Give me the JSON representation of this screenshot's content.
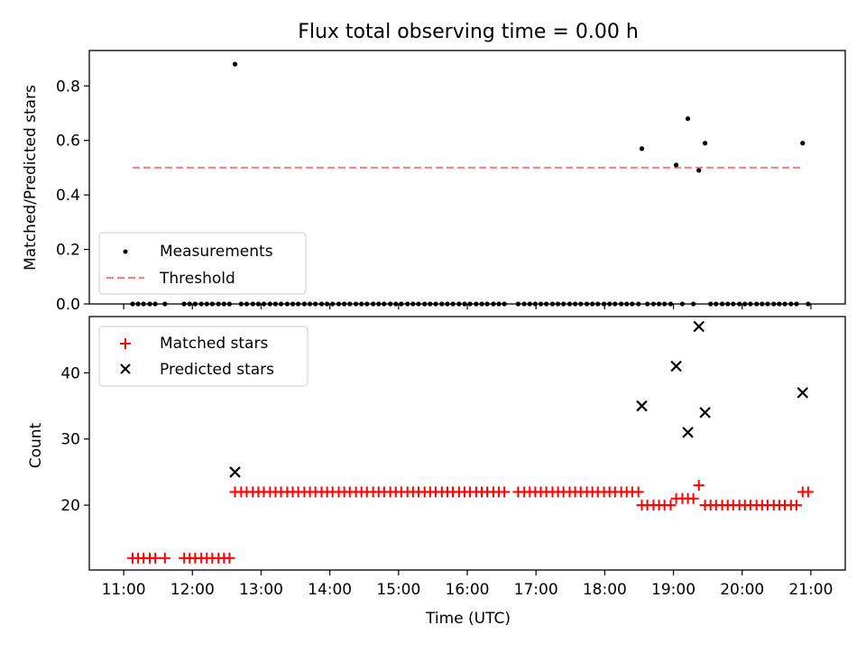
{
  "figure_title": "Flux total observing time = 0.00 h",
  "colors": {
    "threshold": "#ff7b7b",
    "matched": "#ff0000",
    "predicted": "#000000",
    "measurements": "#000000"
  },
  "chart_data": [
    {
      "type": "scatter",
      "title": "Flux total observing time = 0.00 h",
      "xlabel": "",
      "ylabel": "Matched/Predicted stars",
      "x_unit": "hours UTC",
      "xlim": [
        10.5,
        21.5
      ],
      "ylim": [
        0,
        0.93
      ],
      "yticks": [
        0.0,
        0.2,
        0.4,
        0.6,
        0.8
      ],
      "ytick_labels": [
        "0.0",
        "0.2",
        "0.4",
        "0.6",
        "0.8"
      ],
      "legend": {
        "placement": "lower-left",
        "entries": [
          "Measurements",
          "Threshold"
        ]
      },
      "series": [
        {
          "name": "Measurements",
          "marker": "dot",
          "points": [
            [
              11.13,
              0
            ],
            [
              11.21,
              0
            ],
            [
              11.29,
              0
            ],
            [
              11.38,
              0
            ],
            [
              11.46,
              0
            ],
            [
              11.6,
              0
            ],
            [
              11.88,
              0
            ],
            [
              11.96,
              0
            ],
            [
              12.04,
              0
            ],
            [
              12.13,
              0
            ],
            [
              12.21,
              0
            ],
            [
              12.29,
              0
            ],
            [
              12.38,
              0
            ],
            [
              12.46,
              0
            ],
            [
              12.54,
              0
            ],
            [
              12.62,
              0.88
            ],
            [
              12.71,
              0
            ],
            [
              12.79,
              0
            ],
            [
              12.88,
              0
            ],
            [
              12.96,
              0
            ],
            [
              13.04,
              0
            ],
            [
              13.13,
              0
            ],
            [
              13.21,
              0
            ],
            [
              13.29,
              0
            ],
            [
              13.38,
              0
            ],
            [
              13.46,
              0
            ],
            [
              13.54,
              0
            ],
            [
              13.63,
              0
            ],
            [
              13.71,
              0
            ],
            [
              13.79,
              0
            ],
            [
              13.88,
              0
            ],
            [
              13.96,
              0
            ],
            [
              14.04,
              0
            ],
            [
              14.13,
              0
            ],
            [
              14.21,
              0
            ],
            [
              14.29,
              0
            ],
            [
              14.38,
              0
            ],
            [
              14.46,
              0
            ],
            [
              14.54,
              0
            ],
            [
              14.63,
              0
            ],
            [
              14.71,
              0
            ],
            [
              14.79,
              0
            ],
            [
              14.88,
              0
            ],
            [
              14.96,
              0
            ],
            [
              15.04,
              0
            ],
            [
              15.13,
              0
            ],
            [
              15.21,
              0
            ],
            [
              15.29,
              0
            ],
            [
              15.38,
              0
            ],
            [
              15.46,
              0
            ],
            [
              15.54,
              0
            ],
            [
              15.63,
              0
            ],
            [
              15.71,
              0
            ],
            [
              15.79,
              0
            ],
            [
              15.88,
              0
            ],
            [
              15.96,
              0
            ],
            [
              16.04,
              0
            ],
            [
              16.13,
              0
            ],
            [
              16.21,
              0
            ],
            [
              16.29,
              0
            ],
            [
              16.38,
              0
            ],
            [
              16.46,
              0
            ],
            [
              16.54,
              0
            ],
            [
              16.74,
              0
            ],
            [
              16.83,
              0
            ],
            [
              16.91,
              0
            ],
            [
              16.99,
              0
            ],
            [
              17.07,
              0
            ],
            [
              17.15,
              0
            ],
            [
              17.24,
              0
            ],
            [
              17.32,
              0
            ],
            [
              17.4,
              0
            ],
            [
              17.49,
              0
            ],
            [
              17.57,
              0
            ],
            [
              17.65,
              0
            ],
            [
              17.74,
              0
            ],
            [
              17.82,
              0
            ],
            [
              17.9,
              0
            ],
            [
              17.99,
              0
            ],
            [
              18.07,
              0
            ],
            [
              18.15,
              0
            ],
            [
              18.24,
              0
            ],
            [
              18.32,
              0
            ],
            [
              18.4,
              0
            ],
            [
              18.49,
              0
            ],
            [
              18.54,
              0.57
            ],
            [
              18.62,
              0
            ],
            [
              18.71,
              0
            ],
            [
              18.79,
              0
            ],
            [
              18.87,
              0
            ],
            [
              18.96,
              0
            ],
            [
              19.04,
              0.51
            ],
            [
              19.13,
              0
            ],
            [
              19.21,
              0.68
            ],
            [
              19.29,
              0
            ],
            [
              19.37,
              0.49
            ],
            [
              19.46,
              0.59
            ],
            [
              19.54,
              0
            ],
            [
              19.62,
              0
            ],
            [
              19.71,
              0
            ],
            [
              19.79,
              0
            ],
            [
              19.87,
              0
            ],
            [
              19.96,
              0
            ],
            [
              20.04,
              0
            ],
            [
              20.12,
              0
            ],
            [
              20.21,
              0
            ],
            [
              20.29,
              0
            ],
            [
              20.37,
              0
            ],
            [
              20.46,
              0
            ],
            [
              20.54,
              0
            ],
            [
              20.62,
              0
            ],
            [
              20.71,
              0
            ],
            [
              20.79,
              0
            ],
            [
              20.88,
              0.59
            ],
            [
              20.96,
              0
            ]
          ]
        },
        {
          "name": "Threshold",
          "style": "dashed",
          "x": [
            11.13,
            20.88
          ],
          "y": [
            0.5,
            0.5
          ]
        }
      ]
    },
    {
      "type": "scatter",
      "xlabel": "Time (UTC)",
      "ylabel": "Count",
      "x_unit": "hours UTC",
      "xlim": [
        10.5,
        21.5
      ],
      "ylim": [
        10.2,
        48.5
      ],
      "xticks": [
        11,
        12,
        13,
        14,
        15,
        16,
        17,
        18,
        19,
        20,
        21
      ],
      "xtick_labels": [
        "11:00",
        "12:00",
        "13:00",
        "14:00",
        "15:00",
        "16:00",
        "17:00",
        "18:00",
        "19:00",
        "20:00",
        "21:00"
      ],
      "yticks": [
        20,
        30,
        40
      ],
      "ytick_labels": [
        "20",
        "30",
        "40"
      ],
      "legend": {
        "placement": "top-left",
        "entries": [
          "Matched stars",
          "Predicted stars"
        ]
      },
      "series": [
        {
          "name": "Matched stars",
          "marker": "plus",
          "points": [
            [
              11.13,
              12
            ],
            [
              11.21,
              12
            ],
            [
              11.29,
              12
            ],
            [
              11.38,
              12
            ],
            [
              11.46,
              12
            ],
            [
              11.6,
              12
            ],
            [
              11.88,
              12
            ],
            [
              11.96,
              12
            ],
            [
              12.04,
              12
            ],
            [
              12.13,
              12
            ],
            [
              12.21,
              12
            ],
            [
              12.29,
              12
            ],
            [
              12.38,
              12
            ],
            [
              12.46,
              12
            ],
            [
              12.54,
              12
            ],
            [
              12.62,
              22
            ],
            [
              12.71,
              22
            ],
            [
              12.79,
              22
            ],
            [
              12.88,
              22
            ],
            [
              12.96,
              22
            ],
            [
              13.04,
              22
            ],
            [
              13.13,
              22
            ],
            [
              13.21,
              22
            ],
            [
              13.29,
              22
            ],
            [
              13.38,
              22
            ],
            [
              13.46,
              22
            ],
            [
              13.54,
              22
            ],
            [
              13.63,
              22
            ],
            [
              13.71,
              22
            ],
            [
              13.79,
              22
            ],
            [
              13.88,
              22
            ],
            [
              13.96,
              22
            ],
            [
              14.04,
              22
            ],
            [
              14.13,
              22
            ],
            [
              14.21,
              22
            ],
            [
              14.29,
              22
            ],
            [
              14.38,
              22
            ],
            [
              14.46,
              22
            ],
            [
              14.54,
              22
            ],
            [
              14.63,
              22
            ],
            [
              14.71,
              22
            ],
            [
              14.79,
              22
            ],
            [
              14.88,
              22
            ],
            [
              14.96,
              22
            ],
            [
              15.04,
              22
            ],
            [
              15.13,
              22
            ],
            [
              15.21,
              22
            ],
            [
              15.29,
              22
            ],
            [
              15.38,
              22
            ],
            [
              15.46,
              22
            ],
            [
              15.54,
              22
            ],
            [
              15.63,
              22
            ],
            [
              15.71,
              22
            ],
            [
              15.79,
              22
            ],
            [
              15.88,
              22
            ],
            [
              15.96,
              22
            ],
            [
              16.04,
              22
            ],
            [
              16.13,
              22
            ],
            [
              16.21,
              22
            ],
            [
              16.29,
              22
            ],
            [
              16.38,
              22
            ],
            [
              16.46,
              22
            ],
            [
              16.54,
              22
            ],
            [
              16.74,
              22
            ],
            [
              16.83,
              22
            ],
            [
              16.91,
              22
            ],
            [
              16.99,
              22
            ],
            [
              17.07,
              22
            ],
            [
              17.15,
              22
            ],
            [
              17.24,
              22
            ],
            [
              17.32,
              22
            ],
            [
              17.4,
              22
            ],
            [
              17.49,
              22
            ],
            [
              17.57,
              22
            ],
            [
              17.65,
              22
            ],
            [
              17.74,
              22
            ],
            [
              17.82,
              22
            ],
            [
              17.9,
              22
            ],
            [
              17.99,
              22
            ],
            [
              18.07,
              22
            ],
            [
              18.15,
              22
            ],
            [
              18.24,
              22
            ],
            [
              18.32,
              22
            ],
            [
              18.4,
              22
            ],
            [
              18.49,
              22
            ],
            [
              18.54,
              20
            ],
            [
              18.62,
              20
            ],
            [
              18.71,
              20
            ],
            [
              18.79,
              20
            ],
            [
              18.87,
              20
            ],
            [
              18.96,
              20
            ],
            [
              19.04,
              21
            ],
            [
              19.13,
              21
            ],
            [
              19.21,
              21
            ],
            [
              19.29,
              21
            ],
            [
              19.37,
              23
            ],
            [
              19.46,
              20
            ],
            [
              19.54,
              20
            ],
            [
              19.62,
              20
            ],
            [
              19.71,
              20
            ],
            [
              19.79,
              20
            ],
            [
              19.87,
              20
            ],
            [
              19.96,
              20
            ],
            [
              20.04,
              20
            ],
            [
              20.12,
              20
            ],
            [
              20.21,
              20
            ],
            [
              20.29,
              20
            ],
            [
              20.37,
              20
            ],
            [
              20.46,
              20
            ],
            [
              20.54,
              20
            ],
            [
              20.62,
              20
            ],
            [
              20.71,
              20
            ],
            [
              20.79,
              20
            ],
            [
              20.88,
              22
            ],
            [
              20.96,
              22
            ]
          ]
        },
        {
          "name": "Predicted stars",
          "marker": "x",
          "points": [
            [
              12.62,
              25
            ],
            [
              18.54,
              35
            ],
            [
              19.04,
              41
            ],
            [
              19.21,
              31
            ],
            [
              19.37,
              47
            ],
            [
              19.46,
              34
            ],
            [
              20.88,
              37
            ]
          ]
        }
      ]
    }
  ]
}
